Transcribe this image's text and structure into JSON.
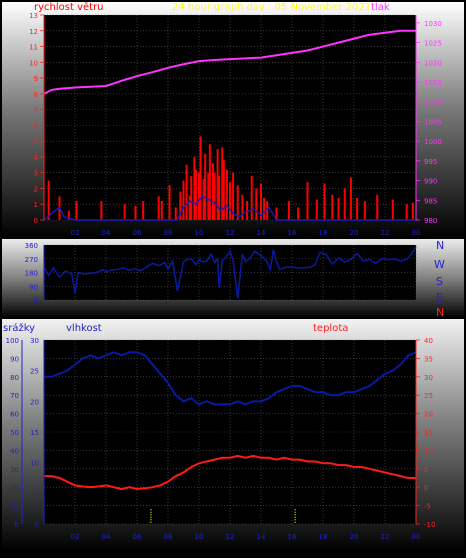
{
  "colors": {
    "wind": "#ff0000",
    "gust": "#1a1ab4",
    "pressure": "#ff33ff",
    "title": "#ffff00",
    "humidity": "#0a1aa0",
    "temperature": "#ff1a1a",
    "rain": "#ffff00",
    "axis_blue": "#2222cc",
    "axis_red": "#ff2222",
    "axis_magenta": "#ff33ff"
  },
  "chart_data": [
    {
      "type": "line",
      "title": "24 hour graph day : 05 November 2021",
      "left_label": "rychlost větru",
      "right_label": "tlak",
      "x_ticks": [
        "02",
        "04",
        "06",
        "08",
        "10",
        "12",
        "14",
        "16",
        "18",
        "20",
        "22",
        "00"
      ],
      "left_ticks": [
        "0",
        "1",
        "2",
        "3",
        "4",
        "5",
        "6",
        "7",
        "8",
        "9",
        "10",
        "11",
        "12",
        "13"
      ],
      "right_ticks": [
        "980",
        "985",
        "990",
        "995",
        "1000",
        "1005",
        "1010",
        "1015",
        "1020",
        "1025",
        "1030"
      ],
      "xlim": [
        0,
        24
      ],
      "ylim_left": [
        0,
        13
      ],
      "ylim_right": [
        980,
        1032
      ],
      "series": [
        {
          "kind": "line",
          "axis": "right",
          "x": [
            0,
            0.5,
            1,
            2,
            3,
            4,
            5,
            6,
            7,
            8,
            9,
            10,
            11,
            12,
            13,
            14,
            15,
            16,
            17,
            18,
            19,
            20,
            21,
            22,
            23,
            24
          ],
          "y": [
            1012,
            1013,
            1013.3,
            1013.6,
            1013.8,
            1014,
            1015.3,
            1016.5,
            1017.5,
            1018.6,
            1019.5,
            1020.3,
            1020.6,
            1020.8,
            1021,
            1021.2,
            1021.8,
            1022.4,
            1023,
            1024,
            1025,
            1026,
            1027,
            1027.5,
            1028,
            1028
          ]
        },
        {
          "kind": "bars",
          "axis": "left",
          "x": [
            0.3,
            1.0,
            1.6,
            2.1,
            3.7,
            5.2,
            5.9,
            6.4,
            7.4,
            7.6,
            8.1,
            8.5,
            8.8,
            9.0,
            9.2,
            9.4,
            9.5,
            9.7,
            9.8,
            10.0,
            10.1,
            10.3,
            10.4,
            10.6,
            10.7,
            10.9,
            11.0,
            11.2,
            11.3,
            11.5,
            11.6,
            11.8,
            12.0,
            12.2,
            12.5,
            12.8,
            13.1,
            13.4,
            13.7,
            14.0,
            14.2,
            14.4,
            15.0,
            15.8,
            16.4,
            17.0,
            17.6,
            18.1,
            18.6,
            19.0,
            19.4,
            19.8,
            20.2,
            20.7,
            21.5,
            22.5,
            23.4,
            23.8
          ],
          "y": [
            2.5,
            1.5,
            0.6,
            1.2,
            1.2,
            1.0,
            0.9,
            1.2,
            1.5,
            1.2,
            2.2,
            0.8,
            1.8,
            2.5,
            3.5,
            1.5,
            2.8,
            4.0,
            3.2,
            3.0,
            5.3,
            2.6,
            4.2,
            3.0,
            4.8,
            3.6,
            3.0,
            4.5,
            2.8,
            4.6,
            3.8,
            3.2,
            2.4,
            3.0,
            2.2,
            1.6,
            1.2,
            2.8,
            2.0,
            2.3,
            1.4,
            1.2,
            0.8,
            1.2,
            0.8,
            2.4,
            1.3,
            2.3,
            1.6,
            1.4,
            2.0,
            2.7,
            1.4,
            1.2,
            1.6,
            1.3,
            1.0,
            1.1
          ]
        },
        {
          "kind": "line",
          "axis": "left",
          "x": [
            0,
            0.6,
            1.0,
            1.3,
            2.0,
            8.6,
            9.0,
            9.4,
            9.8,
            10.2,
            10.6,
            11.0,
            11.4,
            11.8,
            12.2,
            12.6,
            13.0,
            13.5,
            14.0,
            14.5,
            15.0,
            24
          ],
          "y": [
            0,
            0.5,
            0.8,
            0.2,
            0,
            0,
            0.8,
            1.2,
            1.0,
            1.5,
            1.3,
            1.1,
            0.6,
            0.9,
            0.4,
            0.2,
            0.5,
            0.7,
            0.3,
            0.8,
            0,
            0
          ]
        }
      ]
    },
    {
      "type": "line",
      "ylabel_right": [
        "N",
        "W",
        "S",
        "E",
        "N"
      ],
      "y_ticks": [
        "0",
        "90",
        "180",
        "270",
        "360"
      ],
      "xlim": [
        0,
        24
      ],
      "ylim": [
        0,
        360
      ],
      "series": [
        {
          "x": [
            0,
            0.3,
            0.6,
            1.0,
            1.4,
            1.8,
            2.0,
            2.2,
            2.6,
            3.0,
            3.4,
            3.8,
            4.0,
            4.3,
            4.7,
            5.1,
            5.5,
            5.9,
            6.2,
            6.6,
            7.0,
            7.4,
            7.8,
            8.0,
            8.3,
            8.6,
            9.0,
            9.2,
            9.5,
            9.8,
            10.0,
            10.2,
            10.5,
            10.8,
            11.0,
            11.2,
            11.3,
            11.5,
            11.8,
            12.0,
            12.2,
            12.5,
            12.8,
            13.0,
            13.3,
            13.6,
            14.0,
            14.4,
            14.6,
            14.8,
            15.0,
            15.2,
            15.6,
            16.0,
            16.4,
            16.8,
            17.2,
            17.5,
            17.8,
            18.2,
            18.6,
            19.0,
            19.4,
            19.8,
            20.2,
            20.6,
            21.0,
            21.4,
            21.8,
            22.2,
            22.6,
            23.0,
            23.4,
            23.7,
            24
          ],
          "y": [
            215,
            160,
            210,
            150,
            190,
            170,
            40,
            180,
            170,
            175,
            180,
            200,
            185,
            195,
            200,
            210,
            195,
            205,
            190,
            215,
            240,
            225,
            245,
            200,
            255,
            60,
            250,
            265,
            270,
            230,
            265,
            250,
            255,
            300,
            245,
            270,
            80,
            255,
            290,
            320,
            260,
            10,
            300,
            250,
            275,
            320,
            290,
            250,
            200,
            330,
            250,
            200,
            215,
            215,
            210,
            210,
            215,
            230,
            310,
            300,
            235,
            275,
            250,
            265,
            305,
            255,
            265,
            240,
            270,
            265,
            270,
            255,
            265,
            300,
            350
          ]
        }
      ]
    },
    {
      "type": "line",
      "left_outer_label": "srážky",
      "left_label": "vlhkost",
      "right_label": "teplota",
      "x_ticks": [
        "02",
        "04",
        "06",
        "08",
        "10",
        "12",
        "14",
        "16",
        "18",
        "20",
        "22",
        "00"
      ],
      "rain_ticks": [
        "0",
        "10",
        "20",
        "30",
        "40",
        "50",
        "60",
        "70",
        "80",
        "90",
        "100"
      ],
      "humidity_ticks": [
        "0",
        "5",
        "10",
        "15",
        "20",
        "25",
        "30"
      ],
      "temp_ticks": [
        "-10",
        "-5",
        "0",
        "5",
        "10",
        "15",
        "20",
        "25",
        "30",
        "35",
        "40"
      ],
      "xlim": [
        0,
        24
      ],
      "ylim_humidity": [
        0,
        30
      ],
      "ylim_temperature": [
        -10,
        40
      ],
      "series": [
        {
          "kind": "line",
          "axis": "humidity",
          "x": [
            0,
            0.5,
            1,
            1.5,
            2,
            2.5,
            3,
            3.5,
            4,
            4.5,
            5,
            5.5,
            6,
            6.5,
            7,
            7.5,
            8,
            8.5,
            9,
            9.5,
            10,
            10.5,
            11,
            11.5,
            12,
            12.5,
            13,
            13.5,
            14,
            14.5,
            15,
            15.5,
            16,
            16.5,
            17,
            17.5,
            18,
            18.5,
            19,
            19.5,
            20,
            20.5,
            21,
            21.5,
            22,
            22.5,
            23,
            23.5,
            24
          ],
          "y": [
            24,
            24,
            24.5,
            25,
            26,
            27,
            27.5,
            27,
            27.5,
            28,
            27.5,
            28,
            28,
            27.5,
            26,
            24.5,
            23,
            21,
            20,
            20.5,
            19.5,
            20,
            19.5,
            19.5,
            19.5,
            20,
            19.5,
            20,
            20,
            20.5,
            21.5,
            22,
            22.5,
            22.5,
            22,
            21.5,
            21.5,
            21,
            21,
            21.5,
            21.5,
            22,
            22.5,
            23.5,
            24.5,
            25,
            26,
            27.5,
            28
          ]
        },
        {
          "kind": "line",
          "axis": "temperature",
          "x": [
            0,
            0.5,
            1,
            1.5,
            2,
            2.5,
            3,
            3.5,
            4,
            4.5,
            5,
            5.5,
            6,
            6.5,
            7,
            7.5,
            8,
            8.5,
            9,
            9.5,
            10,
            10.5,
            11,
            11.5,
            12,
            12.5,
            13,
            13.5,
            14,
            14.5,
            15,
            15.5,
            16,
            16.5,
            17,
            17.5,
            18,
            18.5,
            19,
            19.5,
            20,
            20.5,
            21,
            21.5,
            22,
            22.5,
            23,
            23.5,
            24
          ],
          "y": [
            3,
            3,
            2.5,
            1.5,
            0.5,
            0.2,
            0,
            0.2,
            0.5,
            0,
            -0.5,
            0,
            -0.5,
            -0.3,
            0,
            0.5,
            1.5,
            3,
            4,
            5.5,
            6.5,
            7,
            7.5,
            8,
            8,
            8.5,
            8,
            8.5,
            8,
            8,
            7.5,
            8,
            7.5,
            7.5,
            7,
            7,
            6.5,
            6.5,
            6,
            6,
            5.5,
            5.5,
            5,
            4.5,
            4,
            3.5,
            3,
            2.5,
            2.5
          ]
        },
        {
          "kind": "bars",
          "axis": "rain",
          "x": [
            6.9,
            16.2
          ],
          "y": [
            8,
            8
          ]
        }
      ]
    }
  ]
}
